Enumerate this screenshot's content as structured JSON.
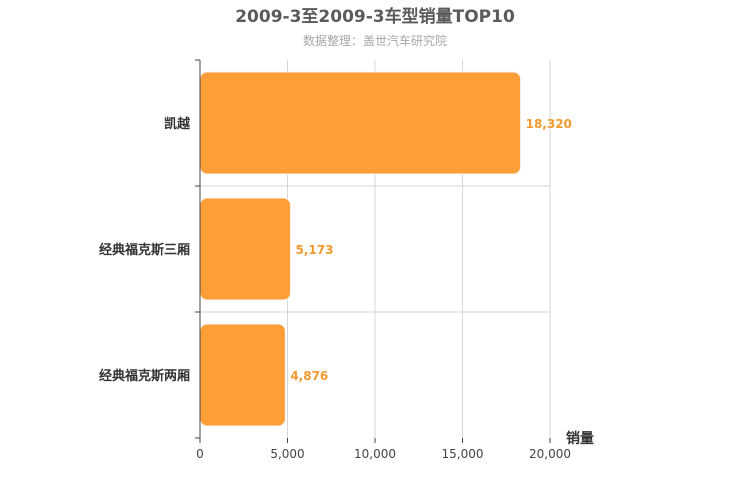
{
  "chart_data": {
    "type": "bar",
    "orientation": "horizontal",
    "title": "2009-3至2009-3车型销量TOP10",
    "subtitle": "数据整理：盖世汽车研究院",
    "categories": [
      "凯越",
      "经典福克斯三厢",
      "经典福克斯两厢"
    ],
    "values": [
      18320,
      5173,
      4876
    ],
    "value_labels": [
      "18,320",
      "5,173",
      "4,876"
    ],
    "xlabel": "销量",
    "ylabel": "",
    "xlim": [
      0,
      20000
    ],
    "x_ticks": [
      0,
      5000,
      10000,
      15000,
      20000
    ],
    "x_tick_labels": [
      "0",
      "5,000",
      "10,000",
      "15,000",
      "20,000"
    ],
    "grid": true,
    "legend": "none",
    "colors": {
      "bar": "#ff9e36",
      "bar_stroke": "#f5f5f5",
      "grid": "#d6d6d6",
      "axis": "#444444",
      "data_label": "#f39a2e"
    }
  }
}
